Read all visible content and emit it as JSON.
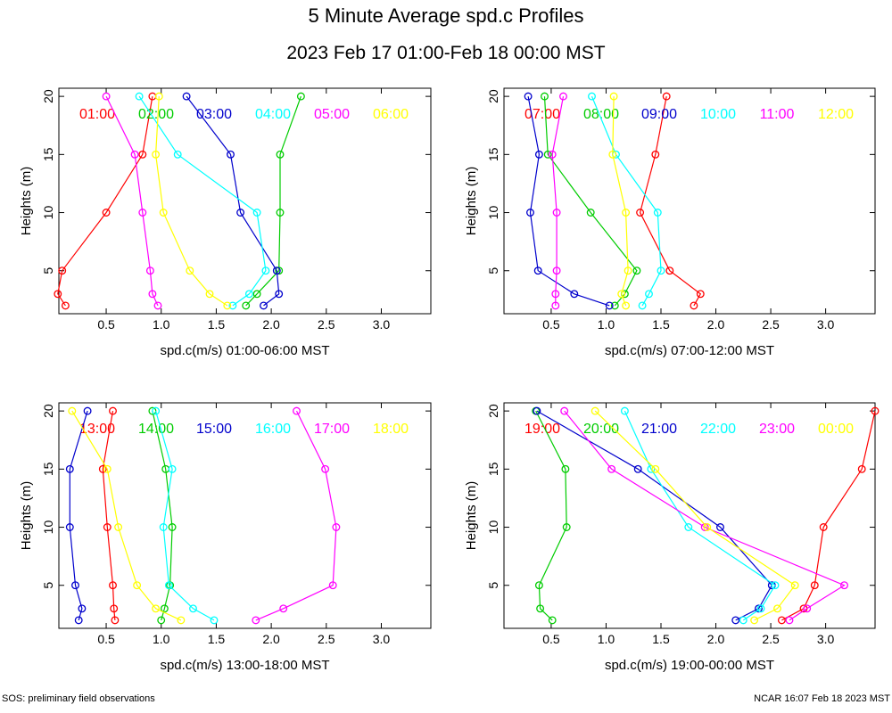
{
  "title": "5 Minute Average spd.c Profiles",
  "subtitle": "2023 Feb 17 01:00-Feb 18 00:00 MST",
  "footer": {
    "left": "SOS: preliminary field observations",
    "right": "NCAR 16:07 Feb 18 2023 MST"
  },
  "colors": [
    "#ff0000",
    "#00cc00",
    "#0000cc",
    "#00ffff",
    "#ff00ff",
    "#ffff00"
  ],
  "chart_data": [
    {
      "type": "line",
      "title": "",
      "xlabel": "spd.c(m/s) 01:00-06:00 MST",
      "ylabel": "Heights (m)",
      "xlim": [
        0.07,
        3.45
      ],
      "ylim": [
        1.3,
        20.7
      ],
      "xticks": [
        "0.5",
        "1.0",
        "1.5",
        "2.0",
        "2.5",
        "3.0"
      ],
      "yticks": [
        "5",
        "10",
        "15",
        "20"
      ],
      "heights": [
        2,
        3,
        5,
        10,
        15,
        20
      ],
      "series": [
        {
          "name": "01:00",
          "values": [
            0.13,
            0.06,
            0.1,
            0.5,
            0.83,
            0.92
          ]
        },
        {
          "name": "02:00",
          "values": [
            1.77,
            1.87,
            2.07,
            2.08,
            2.08,
            2.27
          ]
        },
        {
          "name": "03:00",
          "values": [
            1.93,
            2.07,
            2.05,
            1.72,
            1.63,
            1.23
          ]
        },
        {
          "name": "04:00",
          "values": [
            1.65,
            1.8,
            1.95,
            1.87,
            1.15,
            0.8
          ]
        },
        {
          "name": "05:00",
          "values": [
            0.97,
            0.92,
            0.9,
            0.83,
            0.76,
            0.5
          ]
        },
        {
          "name": "06:00",
          "values": [
            1.6,
            1.44,
            1.26,
            1.02,
            0.95,
            0.98
          ]
        }
      ]
    },
    {
      "type": "line",
      "title": "",
      "xlabel": "spd.c(m/s) 07:00-12:00 MST",
      "ylabel": "Heights (m)",
      "xlim": [
        0.07,
        3.45
      ],
      "ylim": [
        1.3,
        20.7
      ],
      "xticks": [
        "0.5",
        "1.0",
        "1.5",
        "2.0",
        "2.5",
        "3.0"
      ],
      "yticks": [
        "5",
        "10",
        "15",
        "20"
      ],
      "heights": [
        2,
        3,
        5,
        10,
        15,
        20
      ],
      "series": [
        {
          "name": "07:00",
          "values": [
            1.8,
            1.86,
            1.58,
            1.31,
            1.45,
            1.55
          ]
        },
        {
          "name": "08:00",
          "values": [
            1.08,
            1.17,
            1.28,
            0.86,
            0.47,
            0.44
          ]
        },
        {
          "name": "09:00",
          "values": [
            1.03,
            0.71,
            0.38,
            0.31,
            0.39,
            0.29
          ]
        },
        {
          "name": "10:00",
          "values": [
            1.33,
            1.39,
            1.5,
            1.47,
            1.09,
            0.87
          ]
        },
        {
          "name": "11:00",
          "values": [
            0.54,
            0.54,
            0.55,
            0.55,
            0.51,
            0.61
          ]
        },
        {
          "name": "12:00",
          "values": [
            1.18,
            1.14,
            1.2,
            1.18,
            1.06,
            1.07
          ]
        }
      ]
    },
    {
      "type": "line",
      "title": "",
      "xlabel": "spd.c(m/s) 13:00-18:00 MST",
      "ylabel": "Heights (m)",
      "xlim": [
        0.07,
        3.45
      ],
      "ylim": [
        1.3,
        20.7
      ],
      "xticks": [
        "0.5",
        "1.0",
        "1.5",
        "2.0",
        "2.5",
        "3.0"
      ],
      "yticks": [
        "5",
        "10",
        "15",
        "20"
      ],
      "heights": [
        2,
        3,
        5,
        10,
        15,
        20
      ],
      "series": [
        {
          "name": "13:00",
          "values": [
            0.58,
            0.57,
            0.56,
            0.51,
            0.47,
            0.56
          ]
        },
        {
          "name": "14:00",
          "values": [
            1.0,
            1.03,
            1.08,
            1.1,
            1.04,
            0.92
          ]
        },
        {
          "name": "15:00",
          "values": [
            0.25,
            0.28,
            0.22,
            0.17,
            0.17,
            0.33
          ]
        },
        {
          "name": "16:00",
          "values": [
            1.48,
            1.29,
            1.07,
            1.02,
            1.1,
            0.95
          ]
        },
        {
          "name": "17:00",
          "values": [
            1.86,
            2.11,
            2.56,
            2.59,
            2.49,
            2.23
          ]
        },
        {
          "name": "18:00",
          "values": [
            1.18,
            0.95,
            0.78,
            0.61,
            0.51,
            0.19
          ]
        }
      ]
    },
    {
      "type": "line",
      "title": "",
      "xlabel": "spd.c(m/s) 19:00-00:00 MST",
      "ylabel": "Heights (m)",
      "xlim": [
        0.07,
        3.45
      ],
      "ylim": [
        1.3,
        20.7
      ],
      "xticks": [
        "0.5",
        "1.0",
        "1.5",
        "2.0",
        "2.5",
        "3.0"
      ],
      "yticks": [
        "5",
        "10",
        "15",
        "20"
      ],
      "heights": [
        2,
        3,
        5,
        10,
        15,
        20
      ],
      "series": [
        {
          "name": "19:00",
          "values": [
            2.6,
            2.8,
            2.9,
            2.98,
            3.33,
            3.45
          ]
        },
        {
          "name": "20:00",
          "values": [
            0.51,
            0.4,
            0.39,
            0.64,
            0.63,
            0.36
          ]
        },
        {
          "name": "21:00",
          "values": [
            2.18,
            2.39,
            2.51,
            2.04,
            1.29,
            0.37
          ]
        },
        {
          "name": "22:00",
          "values": [
            2.25,
            2.41,
            2.54,
            1.75,
            1.41,
            1.17
          ]
        },
        {
          "name": "23:00",
          "values": [
            2.67,
            2.83,
            3.17,
            1.9,
            1.05,
            0.62
          ]
        },
        {
          "name": "00:00",
          "values": [
            2.35,
            2.56,
            2.72,
            1.92,
            1.45,
            0.9
          ]
        }
      ]
    }
  ]
}
